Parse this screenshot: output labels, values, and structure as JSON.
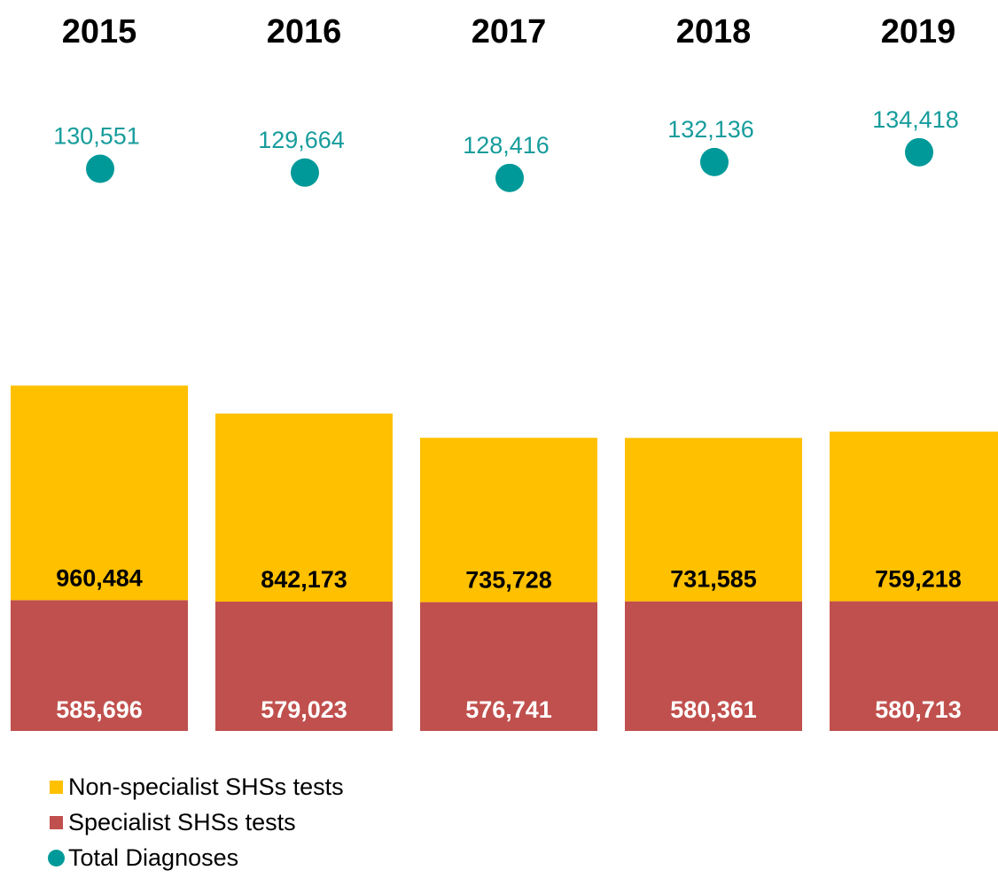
{
  "colors": {
    "non_specialist": "#FFC000",
    "specialist": "#C0504D",
    "diagnoses": "#009999",
    "diag_text": "#179C9C"
  },
  "legend": {
    "items": [
      {
        "label": "Non-specialist SHSs tests",
        "color": "#FFC000",
        "shape": "square"
      },
      {
        "label": "Specialist SHSs tests",
        "color": "#C0504D",
        "shape": "square"
      },
      {
        "label": "Total Diagnoses",
        "color": "#009999",
        "shape": "circle"
      }
    ]
  },
  "chart_data": {
    "type": "bar",
    "stacked": true,
    "categories": [
      "2015",
      "2016",
      "2017",
      "2018",
      "2019"
    ],
    "series": [
      {
        "name": "Specialist SHSs tests",
        "values": [
          585696,
          579023,
          576741,
          580361,
          580713
        ],
        "labels": [
          "585,696",
          "579,023",
          "576,741",
          "580,361",
          "580,713"
        ]
      },
      {
        "name": "Non-specialist SHSs tests",
        "values": [
          960484,
          842173,
          735728,
          731585,
          759218
        ],
        "labels": [
          "960,484",
          "842,173",
          "735,728",
          "731,585",
          "759,218"
        ]
      }
    ],
    "diagnoses": {
      "name": "Total Diagnoses",
      "values": [
        130551,
        129664,
        128416,
        132136,
        134418
      ],
      "labels": [
        "130,551",
        "129,664",
        "128,416",
        "132,136",
        "134,418"
      ]
    },
    "legend_position": "bottom-left",
    "grid": false
  }
}
